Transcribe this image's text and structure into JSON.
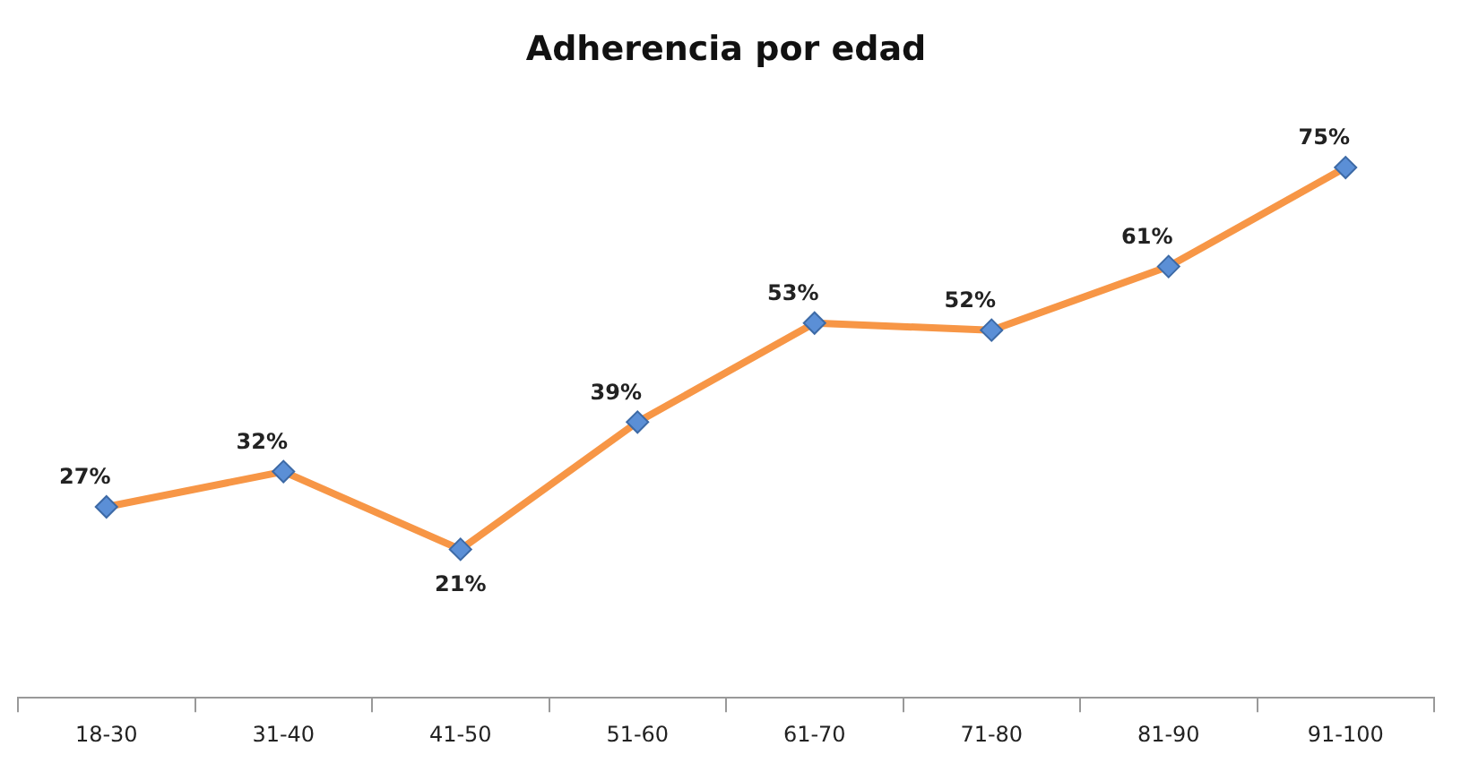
{
  "chart_data": {
    "type": "line",
    "title": "Adherencia por edad",
    "categories": [
      "18-30",
      "31-40",
      "41-50",
      "51-60",
      "61-70",
      "71-80",
      "81-90",
      "91-100"
    ],
    "series": [
      {
        "color": "#f79646",
        "values": [
          27,
          32,
          21,
          39,
          53,
          52,
          61,
          75
        ],
        "value_labels": [
          "27%",
          "32%",
          "21%",
          "39%",
          "53%",
          "52%",
          "61%",
          "75%"
        ]
      }
    ],
    "tick_labels": "x",
    "grid": false,
    "legend": false,
    "marker": "diamond",
    "line_style": "solid"
  }
}
